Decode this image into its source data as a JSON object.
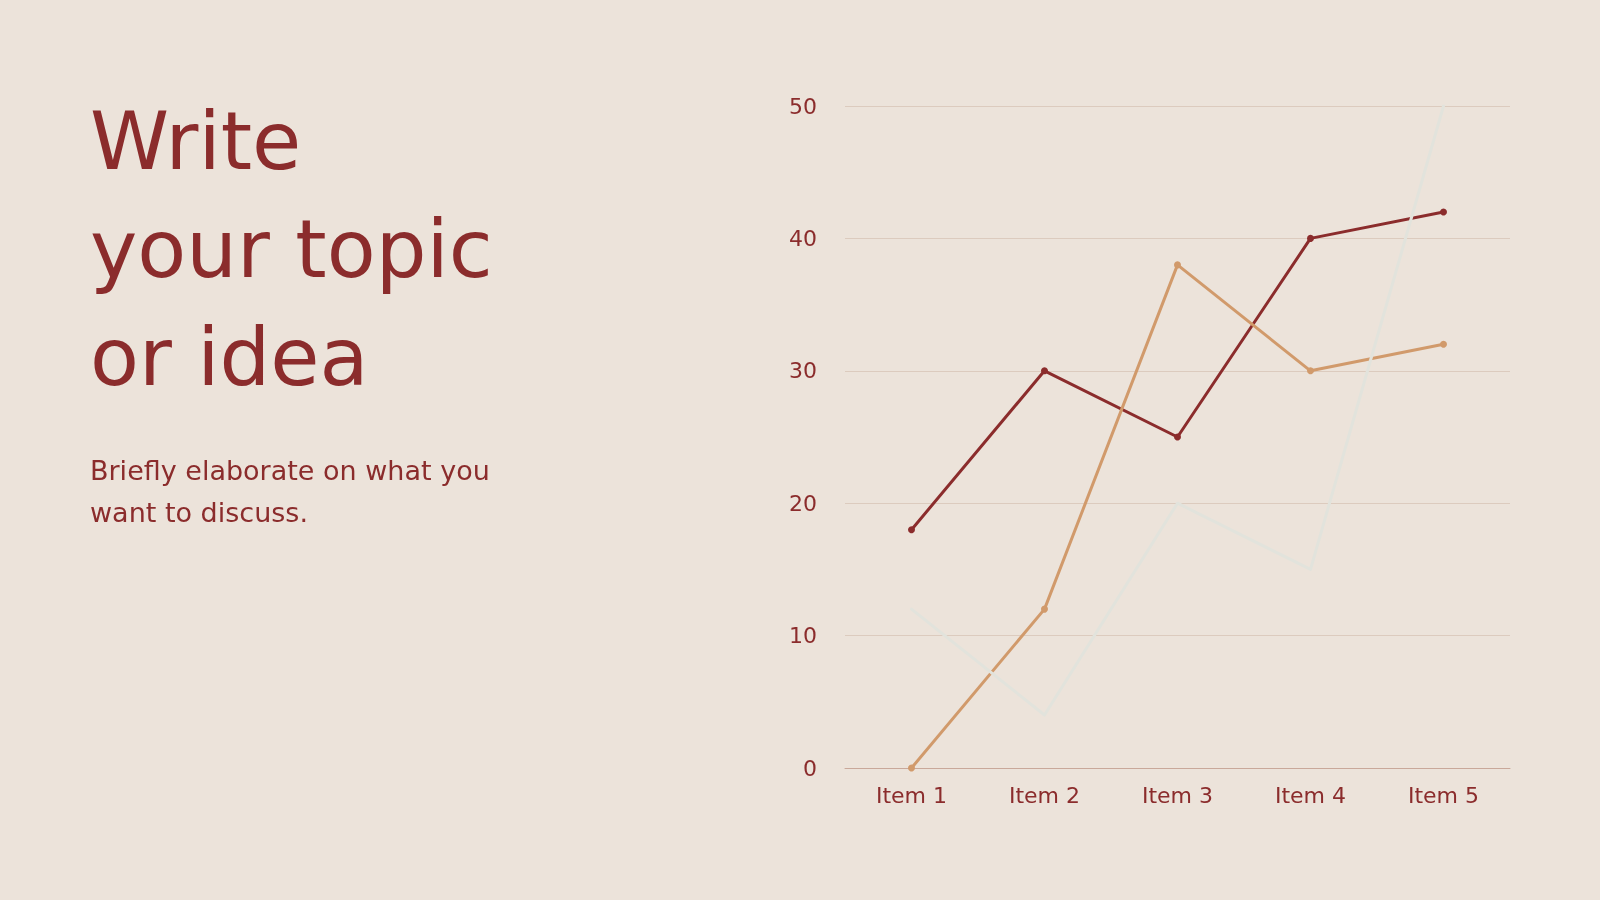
{
  "chart_data": {
    "type": "line",
    "title": "Write\nyour topic\nor idea",
    "subtitle": "Briefly elaborate on what you want to discuss.",
    "categories": [
      "Item 1",
      "Item 2",
      "Item 3",
      "Item 4",
      "Item 5"
    ],
    "series": [
      {
        "color": "#8b2c2c",
        "values": [
          18,
          30,
          25,
          40,
          42
        ],
        "marker": "circle"
      },
      {
        "color": "#d19a6b",
        "values": [
          0,
          12,
          38,
          30,
          32
        ],
        "marker": "circle"
      },
      {
        "color": "#e2e3dc",
        "values": [
          12,
          4,
          20,
          15,
          50
        ],
        "marker": "none"
      }
    ],
    "ylim": [
      0,
      50
    ],
    "yticks": [
      0,
      10,
      20,
      30,
      40,
      50
    ],
    "grid": "y",
    "line_style": "solid"
  }
}
